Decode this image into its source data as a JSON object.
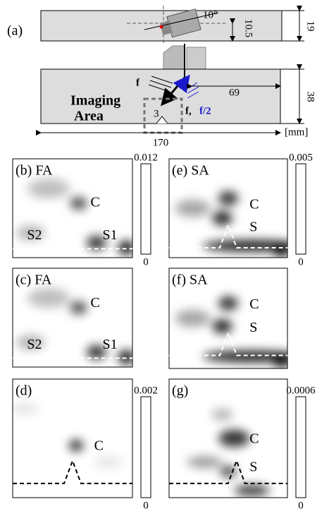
{
  "panel_a": {
    "label": "(a)",
    "angle": "10°",
    "offset": 10.5,
    "width": 19,
    "height": 38,
    "distance": 69,
    "notch": 3,
    "length": 170,
    "unit": "[mm]",
    "force_left": "f",
    "imaging": "Imaging",
    "area": "Area",
    "force_right": "f,",
    "half_force": "f/2"
  },
  "panels": [
    {
      "label": "(b) FA",
      "annotations": [
        "C",
        "S2",
        "S1"
      ]
    },
    {
      "label": "(e) SA",
      "annotations": [
        "C",
        "S"
      ]
    },
    {
      "label": "(c) FA",
      "annotations": [
        "C",
        "S2",
        "S1"
      ]
    },
    {
      "label": "(f) SA",
      "annotations": [
        "C",
        "S"
      ]
    },
    {
      "label": "(d)",
      "annotations": [
        "C"
      ]
    },
    {
      "label": "(g)",
      "annotations": [
        "C",
        "S"
      ]
    }
  ],
  "colorbars": [
    {
      "max": 0.012,
      "min": 0
    },
    {
      "max": 0.005,
      "min": 0
    },
    {
      "max": 0.002,
      "min": 0
    },
    {
      "max": 0.0006,
      "min": 0
    }
  ]
}
